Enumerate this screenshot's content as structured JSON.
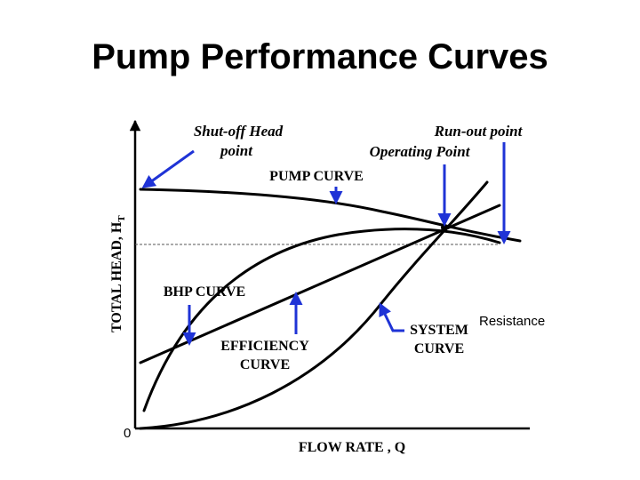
{
  "title": "Pump Performance Curves",
  "axes": {
    "y_label": "TOTAL HEAD, H",
    "y_label_sub": "T",
    "x_label": "FLOW RATE , Q",
    "origin": "0"
  },
  "labels": {
    "shutoff_line1": "Shut-off Head",
    "shutoff_line2": "point",
    "runout": "Run-out point",
    "operating": "Operating Point",
    "pump_curve": "PUMP CURVE",
    "bhp_curve": "BHP CURVE",
    "efficiency_line1": "EFFICIENCY",
    "efficiency_line2": "CURVE",
    "system_line1": "SYSTEM",
    "system_line2": "CURVE",
    "resistance": "Resistance"
  },
  "colors": {
    "arrow": "#1f33d6",
    "curve": "#000000"
  }
}
